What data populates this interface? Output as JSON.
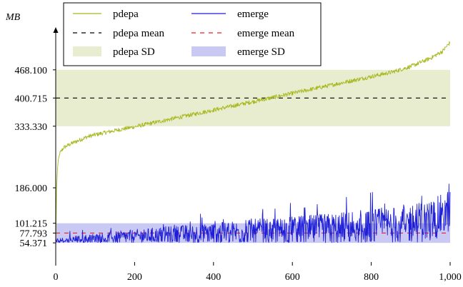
{
  "chart_data": {
    "type": "line",
    "ylabel": "MB",
    "xlim": [
      0,
      1000
    ],
    "ylim": [
      0,
      560
    ],
    "xticks": [
      0,
      200,
      400,
      600,
      800,
      1000
    ],
    "xtick_labels": [
      "0",
      "200",
      "400",
      "600",
      "800",
      "1,000"
    ],
    "yticks": [
      54.371,
      77.793,
      101.215,
      186.0,
      333.33,
      400.715,
      468.1
    ],
    "ytick_labels": [
      "54.371",
      "77.793",
      "101.215",
      "186.000",
      "333.330",
      "400.715",
      "468.100"
    ],
    "legend_position": "top",
    "series": [
      {
        "name": "pdepa",
        "color": "#a8b820",
        "mean": 400.715,
        "sd_band": [
          333.33,
          468.1
        ],
        "x": [
          0,
          2,
          5,
          10,
          20,
          40,
          60,
          80,
          100,
          150,
          200,
          250,
          300,
          350,
          400,
          450,
          500,
          550,
          600,
          650,
          700,
          750,
          800,
          850,
          900,
          950,
          980,
          1000
        ],
        "y": [
          40,
          180,
          240,
          268,
          282,
          292,
          300,
          308,
          313,
          323,
          332,
          342,
          352,
          362,
          372,
          382,
          392,
          402,
          412,
          422,
          432,
          442,
          452,
          462,
          476,
          496,
          512,
          534
        ]
      },
      {
        "name": "emerge",
        "color": "#1f1fd8",
        "mean": 77.793,
        "sd_band": [
          54.371,
          101.215
        ],
        "x": [
          0,
          50,
          100,
          150,
          200,
          250,
          300,
          350,
          400,
          450,
          500,
          550,
          600,
          650,
          700,
          750,
          800,
          850,
          900,
          950,
          990,
          1000
        ],
        "y": [
          58,
          60,
          63,
          66,
          68,
          70,
          72,
          73,
          74,
          76,
          78,
          79,
          80,
          81,
          83,
          85,
          88,
          92,
          96,
          102,
          120,
          130
        ]
      }
    ],
    "legend": {
      "pdepa_line": "pdepa",
      "pdepa_mean": "pdepa mean",
      "pdepa_sd": "pdepa SD",
      "emerge_line": "emerge",
      "emerge_mean": "emerge mean",
      "emerge_sd": "emerge SD"
    }
  },
  "colors": {
    "pdepa": "#a8b820",
    "pdepa_sd_fill": "#e9edcf",
    "pdepa_mean": "#000000",
    "emerge": "#1f1fd8",
    "emerge_sd_fill": "#c9c9f3",
    "emerge_mean": "#e8202a"
  }
}
